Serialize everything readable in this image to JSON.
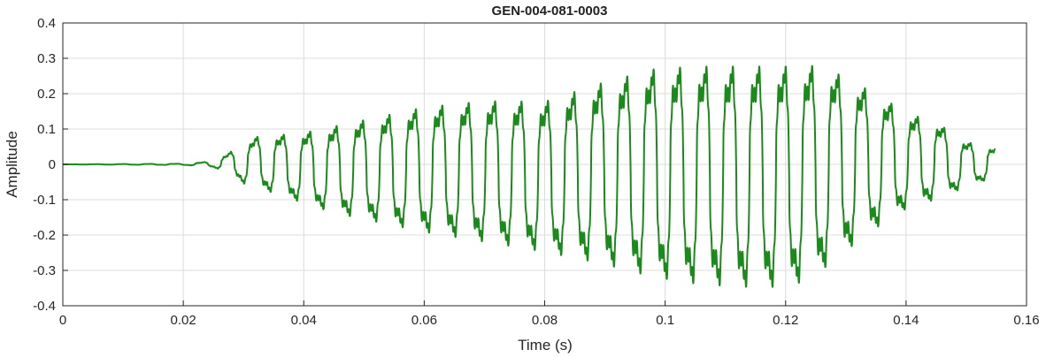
{
  "chart_data": {
    "type": "line",
    "title": "GEN-004-081-0003",
    "xlabel": "Time (s)",
    "ylabel": "Amplitude",
    "xlim": [
      0,
      0.16
    ],
    "ylim": [
      -0.4,
      0.4
    ],
    "grid": true,
    "legend": "none",
    "x_ticks": [
      0,
      0.02,
      0.04,
      0.06,
      0.08,
      0.1,
      0.12,
      0.14,
      0.16
    ],
    "x_tick_labels": [
      "0",
      "0.02",
      "0.04",
      "0.06",
      "0.08",
      "0.1",
      "0.12",
      "0.14",
      "0.16"
    ],
    "y_ticks": [
      -0.4,
      -0.3,
      -0.2,
      -0.1,
      0,
      0.1,
      0.2,
      0.3,
      0.4
    ],
    "y_tick_labels": [
      "-0.4",
      "-0.3",
      "-0.2",
      "-0.1",
      "0",
      "0.1",
      "0.2",
      "0.3",
      "0.4"
    ],
    "series": [
      {
        "color": "#1a8a1a",
        "signal_frequency_hz": 228,
        "x": [
          0,
          0.02,
          0.024,
          0.026,
          0.028,
          0.03,
          0.032,
          0.035,
          0.04,
          0.045,
          0.05,
          0.06,
          0.07,
          0.08,
          0.09,
          0.098,
          0.105,
          0.112,
          0.118,
          0.122,
          0.126,
          0.13,
          0.135,
          0.14,
          0.145,
          0.15,
          0.1548
        ],
        "envelope_upper": [
          0,
          0.002,
          0.008,
          0.02,
          0.04,
          0.06,
          0.085,
          0.09,
          0.1,
          0.12,
          0.14,
          0.18,
          0.2,
          0.2,
          0.26,
          0.3,
          0.31,
          0.31,
          0.31,
          0.31,
          0.31,
          0.27,
          0.22,
          0.16,
          0.13,
          0.07,
          0.05
        ],
        "envelope_lower": [
          0,
          -0.002,
          -0.006,
          -0.015,
          -0.03,
          -0.06,
          -0.07,
          -0.09,
          -0.12,
          -0.15,
          -0.17,
          -0.21,
          -0.24,
          -0.27,
          -0.31,
          -0.35,
          -0.37,
          -0.38,
          -0.38,
          -0.37,
          -0.33,
          -0.27,
          -0.2,
          -0.14,
          -0.11,
          -0.07,
          -0.04
        ]
      }
    ]
  }
}
